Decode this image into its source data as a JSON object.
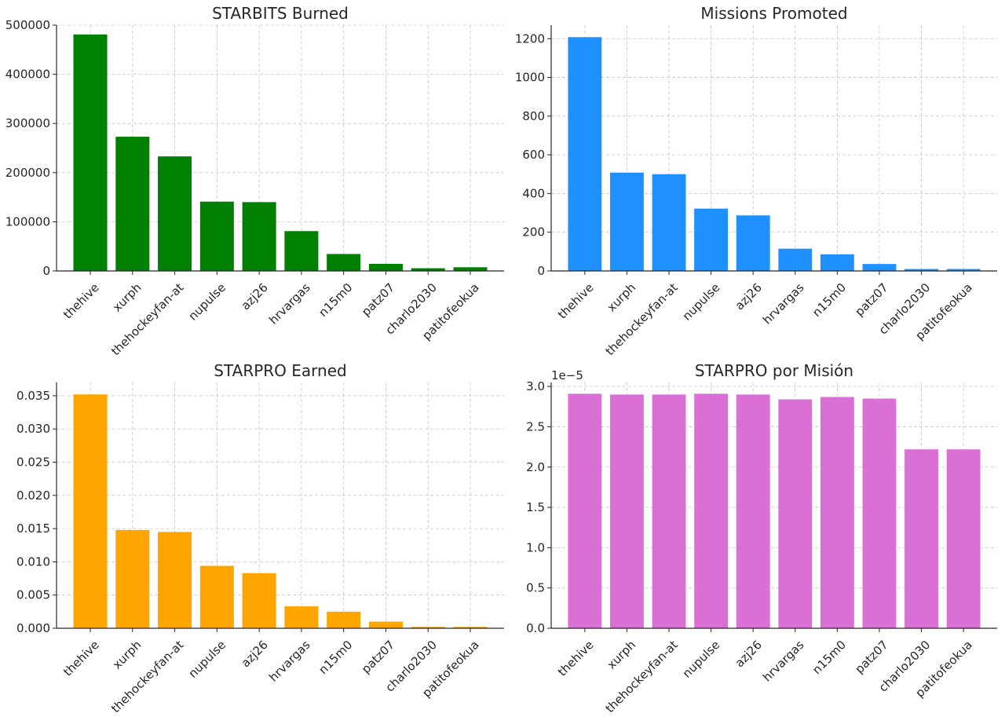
{
  "chart_data": [
    {
      "type": "bar",
      "title": "STARBITS Burned",
      "color": "#008000",
      "categories": [
        "thehive",
        "xurph",
        "thehockeyfan-at",
        "nupulse",
        "azj26",
        "hrvargas",
        "n15m0",
        "patz07",
        "charlo2030",
        "patitofeokua"
      ],
      "values": [
        481000,
        273000,
        233000,
        141000,
        140000,
        81000,
        34500,
        14500,
        5500,
        7500
      ],
      "ylim": [
        0,
        500000
      ],
      "yticks": [
        0,
        100000,
        200000,
        300000,
        400000,
        500000
      ],
      "ytick_labels": [
        "0",
        "100000",
        "200000",
        "300000",
        "400000",
        "500000"
      ],
      "xlabel": "",
      "ylabel": "",
      "grid": true
    },
    {
      "type": "bar",
      "title": "Missions Promoted",
      "color": "#1E90FF",
      "categories": [
        "thehive",
        "xurph",
        "thehockeyfan-at",
        "nupulse",
        "azj26",
        "hrvargas",
        "n15m0",
        "patz07",
        "charlo2030",
        "patitofeokua"
      ],
      "values": [
        1208,
        508,
        500,
        322,
        287,
        115,
        86,
        36,
        10,
        10
      ],
      "ylim": [
        0,
        1270
      ],
      "yticks": [
        0,
        200,
        400,
        600,
        800,
        1000,
        1200
      ],
      "ytick_labels": [
        "0",
        "200",
        "400",
        "600",
        "800",
        "1000",
        "1200"
      ],
      "xlabel": "",
      "ylabel": "",
      "grid": true
    },
    {
      "type": "bar",
      "title": "STARPRO Earned",
      "color": "#FFA500",
      "categories": [
        "thehive",
        "xurph",
        "thehockeyfan-at",
        "nupulse",
        "azj26",
        "hrvargas",
        "n15m0",
        "patz07",
        "charlo2030",
        "patitofeokua"
      ],
      "values": [
        0.0352,
        0.0148,
        0.0145,
        0.0094,
        0.0083,
        0.0033,
        0.0025,
        0.001,
        0.0002,
        0.0002
      ],
      "ylim": [
        0,
        0.037
      ],
      "yticks": [
        0,
        0.005,
        0.01,
        0.015,
        0.02,
        0.025,
        0.03,
        0.035
      ],
      "ytick_labels": [
        "0.000",
        "0.005",
        "0.010",
        "0.015",
        "0.020",
        "0.025",
        "0.030",
        "0.035"
      ],
      "xlabel": "",
      "ylabel": "",
      "grid": true
    },
    {
      "type": "bar",
      "title": "STARPRO por Misión",
      "color": "#DA70D6",
      "categories": [
        "thehive",
        "xurph",
        "thehockeyfan-at",
        "nupulse",
        "azj26",
        "hrvargas",
        "n15m0",
        "patz07",
        "charlo2030",
        "patitofeokua"
      ],
      "values": [
        2.91e-05,
        2.9e-05,
        2.9e-05,
        2.91e-05,
        2.9e-05,
        2.84e-05,
        2.87e-05,
        2.85e-05,
        2.22e-05,
        2.22e-05
      ],
      "ylim": [
        0,
        3.05e-05
      ],
      "yticks": [
        0,
        5e-06,
        1e-05,
        1.5e-05,
        2e-05,
        2.5e-05,
        3e-05
      ],
      "ytick_labels": [
        "0.0",
        "0.5",
        "1.0",
        "1.5",
        "2.0",
        "2.5",
        "3.0"
      ],
      "offset_label": "1e−5",
      "xlabel": "",
      "ylabel": "",
      "grid": true
    }
  ]
}
